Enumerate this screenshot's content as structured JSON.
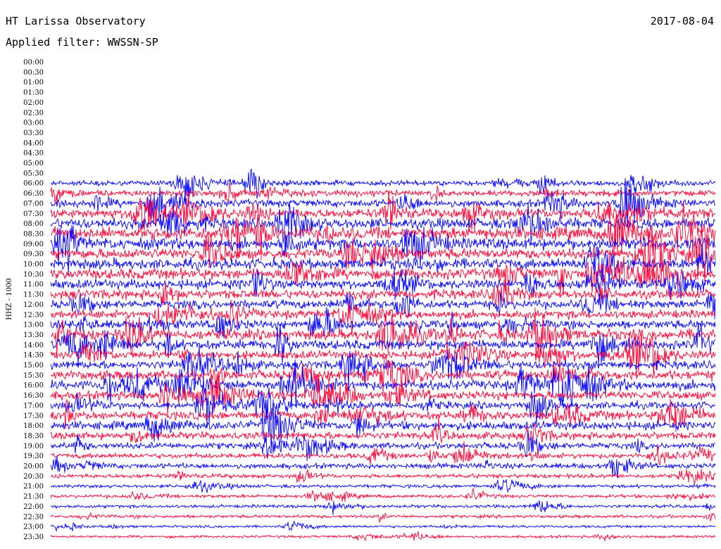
{
  "header": {
    "station": "HT Larissa Observatory",
    "date": "2017-08-04",
    "filter": "Applied filter: WWSSN-SP"
  },
  "colors": {
    "blue": "#0000ff",
    "red": "#ff0033",
    "text": "#000000",
    "background": "#ffffff"
  },
  "chart_data": {
    "type": "line",
    "title": "HT Larissa Observatory",
    "ylabel": "HHZ - 1000",
    "x_start_time": "06:00",
    "x_end_time": "23:30",
    "tick_labels": [
      "00:00",
      "00:30",
      "01:00",
      "01:30",
      "02:00",
      "02:30",
      "03:00",
      "03:30",
      "04:00",
      "04:30",
      "05:00",
      "05:30",
      "06:00",
      "06:30",
      "07:00",
      "07:30",
      "08:00",
      "08:30",
      "09:00",
      "09:30",
      "10:00",
      "10:30",
      "11:00",
      "11:30",
      "12:00",
      "12:30",
      "13:00",
      "13:30",
      "14:00",
      "14:30",
      "15:00",
      "15:30",
      "16:00",
      "16:30",
      "17:00",
      "17:30",
      "18:00",
      "18:30",
      "19:00",
      "19:30",
      "20:00",
      "20:30",
      "21:00",
      "21:30",
      "22:00",
      "22:30",
      "23:00",
      "23:30"
    ],
    "first_trace_row": "06:00",
    "trace_colors": [
      "#0000ff",
      "#ff0033"
    ],
    "trace_rows": [
      {
        "label": "06:00",
        "color": "blue",
        "noise": 2.5
      },
      {
        "label": "06:30",
        "color": "red",
        "noise": 3
      },
      {
        "label": "07:00",
        "color": "blue",
        "noise": 3.5
      },
      {
        "label": "07:30",
        "color": "red",
        "noise": 4.5
      },
      {
        "label": "08:00",
        "color": "blue",
        "noise": 5
      },
      {
        "label": "08:30",
        "color": "red",
        "noise": 6
      },
      {
        "label": "09:00",
        "color": "blue",
        "noise": 5.5
      },
      {
        "label": "09:30",
        "color": "red",
        "noise": 5
      },
      {
        "label": "10:00",
        "color": "blue",
        "noise": 5
      },
      {
        "label": "10:30",
        "color": "red",
        "noise": 5
      },
      {
        "label": "11:00",
        "color": "blue",
        "noise": 4.5
      },
      {
        "label": "11:30",
        "color": "red",
        "noise": 4.5
      },
      {
        "label": "12:00",
        "color": "blue",
        "noise": 4
      },
      {
        "label": "12:30",
        "color": "red",
        "noise": 4
      },
      {
        "label": "13:00",
        "color": "blue",
        "noise": 4
      },
      {
        "label": "13:30",
        "color": "red",
        "noise": 5
      },
      {
        "label": "14:00",
        "color": "blue",
        "noise": 4.5
      },
      {
        "label": "14:30",
        "color": "red",
        "noise": 4
      },
      {
        "label": "15:00",
        "color": "blue",
        "noise": 4
      },
      {
        "label": "15:30",
        "color": "red",
        "noise": 4.5
      },
      {
        "label": "16:00",
        "color": "blue",
        "noise": 4.5
      },
      {
        "label": "16:30",
        "color": "red",
        "noise": 4
      },
      {
        "label": "17:00",
        "color": "blue",
        "noise": 3.5
      },
      {
        "label": "17:30",
        "color": "red",
        "noise": 4
      },
      {
        "label": "18:00",
        "color": "blue",
        "noise": 4
      },
      {
        "label": "18:30",
        "color": "red",
        "noise": 3.5
      },
      {
        "label": "19:00",
        "color": "blue",
        "noise": 3
      },
      {
        "label": "19:30",
        "color": "red",
        "noise": 2.5
      },
      {
        "label": "20:00",
        "color": "blue",
        "noise": 2.5
      },
      {
        "label": "20:30",
        "color": "red",
        "noise": 2
      },
      {
        "label": "21:00",
        "color": "blue",
        "noise": 1.6
      },
      {
        "label": "21:30",
        "color": "red",
        "noise": 1.6
      },
      {
        "label": "22:00",
        "color": "blue",
        "noise": 1.5
      },
      {
        "label": "22:30",
        "color": "red",
        "noise": 1.5
      },
      {
        "label": "23:00",
        "color": "blue",
        "noise": 1.2
      },
      {
        "label": "23:30",
        "color": "red",
        "noise": 1.2
      }
    ],
    "grid": false,
    "legend": "none"
  }
}
